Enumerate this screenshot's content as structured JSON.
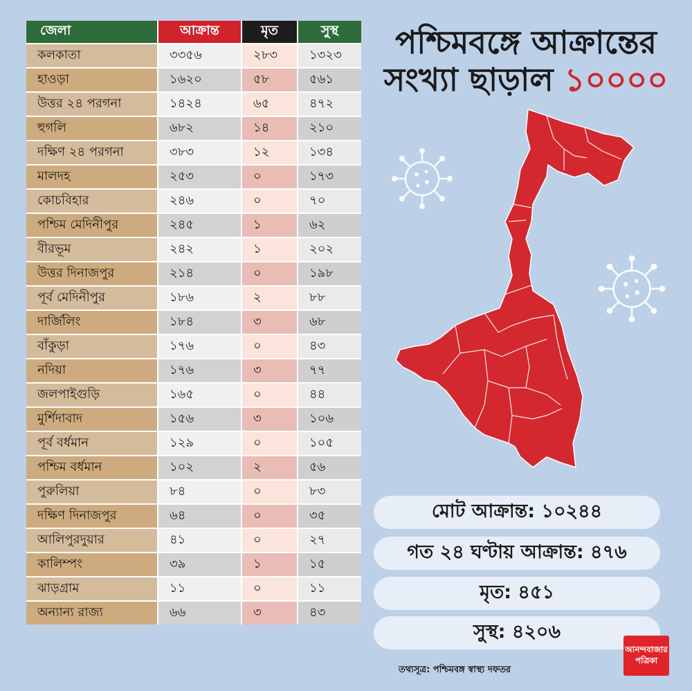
{
  "table": {
    "headers": {
      "district": "জেলা",
      "infected": "আক্রান্ত",
      "dead": "মৃত",
      "recovered": "সুস্থ"
    },
    "rows": [
      {
        "district": "কলকাতা",
        "infected": "৩৩৫৬",
        "dead": "২৮৩",
        "recovered": "১৩২৩"
      },
      {
        "district": "হাওড়া",
        "infected": "১৬২০",
        "dead": "৫৮",
        "recovered": "৫৬১"
      },
      {
        "district": "উত্তর ২৪ পরগনা",
        "infected": "১৪২৪",
        "dead": "৬৫",
        "recovered": "৪৭২"
      },
      {
        "district": "হুগলি",
        "infected": "৬৮২",
        "dead": "১৪",
        "recovered": "২১০"
      },
      {
        "district": "দক্ষিণ ২৪ পরগনা",
        "infected": "৩৮৩",
        "dead": "১২",
        "recovered": "১৩৪"
      },
      {
        "district": "মালদহ",
        "infected": "২৫৩",
        "dead": "০",
        "recovered": "১৭৩"
      },
      {
        "district": "কোচবিহার",
        "infected": "২৪৬",
        "dead": "০",
        "recovered": "৭০"
      },
      {
        "district": "পশ্চিম মেদিনীপুর",
        "infected": "২৪৫",
        "dead": "১",
        "recovered": "৬২"
      },
      {
        "district": "বীরভূম",
        "infected": "২৪২",
        "dead": "১",
        "recovered": "২০২"
      },
      {
        "district": "উত্তর দিনাজপুর",
        "infected": "২১৪",
        "dead": "০",
        "recovered": "১৯৮"
      },
      {
        "district": "পূর্ব মেদিনীপুর",
        "infected": "১৮৬",
        "dead": "২",
        "recovered": "৮৮"
      },
      {
        "district": "দার্জিলিং",
        "infected": "১৮৪",
        "dead": "৩",
        "recovered": "৬৮"
      },
      {
        "district": "বাঁকুড়া",
        "infected": "১৭৬",
        "dead": "০",
        "recovered": "৪৩"
      },
      {
        "district": "নদিয়া",
        "infected": "১৭৬",
        "dead": "৩",
        "recovered": "৭৭"
      },
      {
        "district": "জলপাইগুড়ি",
        "infected": "১৬৫",
        "dead": "০",
        "recovered": "৪৪"
      },
      {
        "district": "মুর্শিদাবাদ",
        "infected": "১৫৬",
        "dead": "৩",
        "recovered": "১০৬"
      },
      {
        "district": "পূর্ব বর্ধমান",
        "infected": "১২৯",
        "dead": "০",
        "recovered": "১০৫"
      },
      {
        "district": "পশ্চিম বর্ধমান",
        "infected": "১০২",
        "dead": "২",
        "recovered": "৫৬"
      },
      {
        "district": "পুরুলিয়া",
        "infected": "৮৪",
        "dead": "০",
        "recovered": "৮৩"
      },
      {
        "district": "দক্ষিণ দিনাজপুর",
        "infected": "৬৪",
        "dead": "০",
        "recovered": "৩৫"
      },
      {
        "district": "আলিপুরদুয়ার",
        "infected": "৪১",
        "dead": "০",
        "recovered": "২৭"
      },
      {
        "district": "কালিম্পং",
        "infected": "৩৯",
        "dead": "১",
        "recovered": "১৫"
      },
      {
        "district": "ঝাড়গ্রাম",
        "infected": "১১",
        "dead": "০",
        "recovered": "১১"
      },
      {
        "district": "অন্যান্য রাজ্য",
        "infected": "৬৬",
        "dead": "৩",
        "recovered": "৪৩"
      }
    ]
  },
  "headline": {
    "line1": "পশ্চিমবঙ্গে আক্রান্তের",
    "line2_text": "সংখ্যা ছাড়াল ",
    "line2_number": "১০০০০"
  },
  "stats": {
    "total": "মোট আক্রান্ত: ১০২৪৪",
    "last24h": "গত ২৪ ঘণ্টায় আক্রান্ত: ৪৭৬",
    "dead": "মৃত: ৪৫১",
    "recovered": "সুস্থ: ৪২০৬"
  },
  "source": "তথ্যসূত্র: পশ্চিমবঙ্গ স্বাস্থ্য দফতর",
  "logo": {
    "line1": "আনন্দবাজার",
    "line2": "পত্রিকা"
  },
  "colors": {
    "background": "#bcd0e8",
    "accent_red": "#d0232c",
    "header_green": "#2d6b3a",
    "header_black": "#1d1d1d",
    "map_fill": "#d3282f",
    "virus": "#ffffff"
  },
  "icons": [
    "virus-icon",
    "west-bengal-map"
  ]
}
